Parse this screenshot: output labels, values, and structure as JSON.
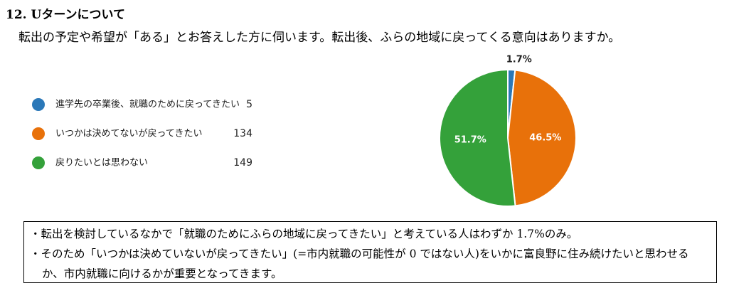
{
  "title": "12. Uターンについて",
  "question": "転出の予定や希望が「ある」とお答えした方に伺います。転出後、ふらの地域に戻ってくる意向はありますか。",
  "chart_data": {
    "type": "pie",
    "categories": [
      "進学先の卒業後、就職のために戻ってきたい",
      "いつかは決めてないが戻ってきたい",
      "戻りたいとは思わない"
    ],
    "counts": [
      5,
      134,
      149
    ],
    "values": [
      1.7,
      46.5,
      51.7
    ],
    "value_labels": [
      "1.7%",
      "46.5%",
      "51.7%"
    ],
    "colors": [
      "#2b78b8",
      "#e8710a",
      "#34a13a"
    ]
  },
  "notes": [
    "・転出を検討しているなかで「就職のためにふらの地域に戻ってきたい」と考えている人はわずか 1.7%のみ。",
    "・そのため「いつかは決めていないが戻ってきたい」(=市内就職の可能性が 0 ではない人)をいかに富良野に住み続けたいと思わせるか、市内就職に向けるかが重要となってきます。"
  ]
}
